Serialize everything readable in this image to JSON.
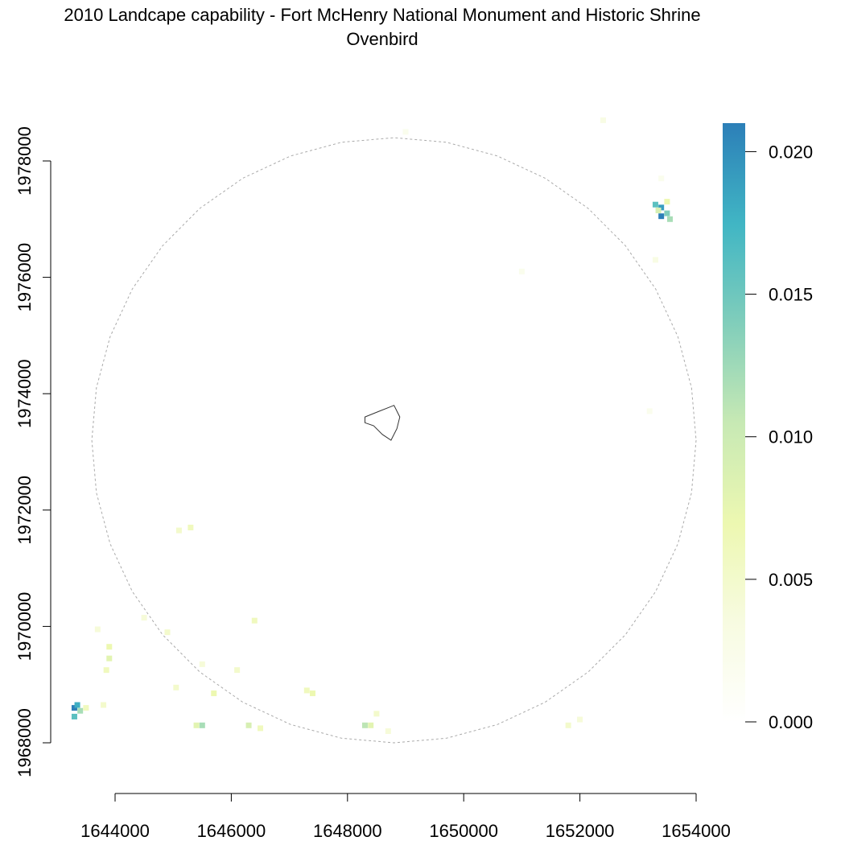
{
  "chart_data": {
    "type": "heatmap",
    "title": "2010 Landcape capability - Fort McHenry National Monument and Historic Shrine",
    "subtitle": "Ovenbird",
    "xlim": [
      1643000,
      1654000
    ],
    "ylim": [
      1967000,
      1978800
    ],
    "x_ticks": [
      1644000,
      1646000,
      1648000,
      1650000,
      1652000,
      1654000
    ],
    "x_tick_labels": [
      "1644000",
      "1646000",
      "1648000",
      "1650000",
      "1652000",
      "1654000"
    ],
    "y_ticks": [
      1968000,
      1970000,
      1972000,
      1974000,
      1976000,
      1978000
    ],
    "y_tick_labels": [
      "1968000",
      "1970000",
      "1972000",
      "1974000",
      "1976000",
      "1978000"
    ],
    "legend": {
      "position": "right",
      "min": 0.0,
      "max": 0.021,
      "ticks": [
        0.0,
        0.005,
        0.01,
        0.015,
        0.02
      ],
      "tick_labels": [
        "0.000",
        "0.005",
        "0.010",
        "0.015",
        "0.020"
      ],
      "colors": [
        "#ffffff",
        "#f7fbe0",
        "#edf8b1",
        "#c7e9b4",
        "#7fcdbb",
        "#41b6c4",
        "#2c7fb8"
      ]
    },
    "buffer_circle": {
      "center": [
        1648800,
        1973200
      ],
      "radius_units": 5200,
      "style": "dashed",
      "color": "#aaaaaa"
    },
    "park_boundary": [
      [
        1648300,
        1973600
      ],
      [
        1648550,
        1973700
      ],
      [
        1648800,
        1973800
      ],
      [
        1648900,
        1973600
      ],
      [
        1648850,
        1973400
      ],
      [
        1648750,
        1973200
      ],
      [
        1648600,
        1973300
      ],
      [
        1648450,
        1973450
      ],
      [
        1648300,
        1973500
      ]
    ],
    "cells": [
      {
        "x": 1643300,
        "y": 1968600,
        "v": 0.021
      },
      {
        "x": 1643350,
        "y": 1968650,
        "v": 0.018
      },
      {
        "x": 1643400,
        "y": 1968550,
        "v": 0.012
      },
      {
        "x": 1643300,
        "y": 1968450,
        "v": 0.016
      },
      {
        "x": 1643500,
        "y": 1968600,
        "v": 0.006
      },
      {
        "x": 1643900,
        "y": 1969650,
        "v": 0.007
      },
      {
        "x": 1643900,
        "y": 1969450,
        "v": 0.008
      },
      {
        "x": 1643850,
        "y": 1969250,
        "v": 0.006
      },
      {
        "x": 1643700,
        "y": 1969950,
        "v": 0.004
      },
      {
        "x": 1643800,
        "y": 1968650,
        "v": 0.005
      },
      {
        "x": 1644500,
        "y": 1970150,
        "v": 0.004
      },
      {
        "x": 1644900,
        "y": 1969900,
        "v": 0.005
      },
      {
        "x": 1645300,
        "y": 1971700,
        "v": 0.006
      },
      {
        "x": 1645100,
        "y": 1971650,
        "v": 0.005
      },
      {
        "x": 1645050,
        "y": 1968950,
        "v": 0.005
      },
      {
        "x": 1645500,
        "y": 1969350,
        "v": 0.004
      },
      {
        "x": 1645500,
        "y": 1968300,
        "v": 0.012
      },
      {
        "x": 1645400,
        "y": 1968300,
        "v": 0.008
      },
      {
        "x": 1645700,
        "y": 1968850,
        "v": 0.007
      },
      {
        "x": 1646300,
        "y": 1968300,
        "v": 0.009
      },
      {
        "x": 1646500,
        "y": 1968250,
        "v": 0.006
      },
      {
        "x": 1646400,
        "y": 1970100,
        "v": 0.006
      },
      {
        "x": 1646100,
        "y": 1969250,
        "v": 0.005
      },
      {
        "x": 1647300,
        "y": 1968900,
        "v": 0.006
      },
      {
        "x": 1647400,
        "y": 1968850,
        "v": 0.007
      },
      {
        "x": 1648300,
        "y": 1968300,
        "v": 0.011
      },
      {
        "x": 1648400,
        "y": 1968300,
        "v": 0.008
      },
      {
        "x": 1648500,
        "y": 1968500,
        "v": 0.005
      },
      {
        "x": 1648700,
        "y": 1968200,
        "v": 0.004
      },
      {
        "x": 1649000,
        "y": 1978500,
        "v": 0.002
      },
      {
        "x": 1651000,
        "y": 1976100,
        "v": 0.002
      },
      {
        "x": 1651800,
        "y": 1968300,
        "v": 0.005
      },
      {
        "x": 1652000,
        "y": 1968400,
        "v": 0.004
      },
      {
        "x": 1652400,
        "y": 1978700,
        "v": 0.003
      },
      {
        "x": 1653300,
        "y": 1977250,
        "v": 0.016
      },
      {
        "x": 1653400,
        "y": 1977200,
        "v": 0.019
      },
      {
        "x": 1653500,
        "y": 1977100,
        "v": 0.014
      },
      {
        "x": 1653550,
        "y": 1977000,
        "v": 0.012
      },
      {
        "x": 1653400,
        "y": 1977050,
        "v": 0.021
      },
      {
        "x": 1653350,
        "y": 1977150,
        "v": 0.009
      },
      {
        "x": 1653500,
        "y": 1977300,
        "v": 0.007
      },
      {
        "x": 1653300,
        "y": 1976300,
        "v": 0.003
      },
      {
        "x": 1653200,
        "y": 1973700,
        "v": 0.002
      },
      {
        "x": 1653400,
        "y": 1977700,
        "v": 0.002
      }
    ]
  }
}
